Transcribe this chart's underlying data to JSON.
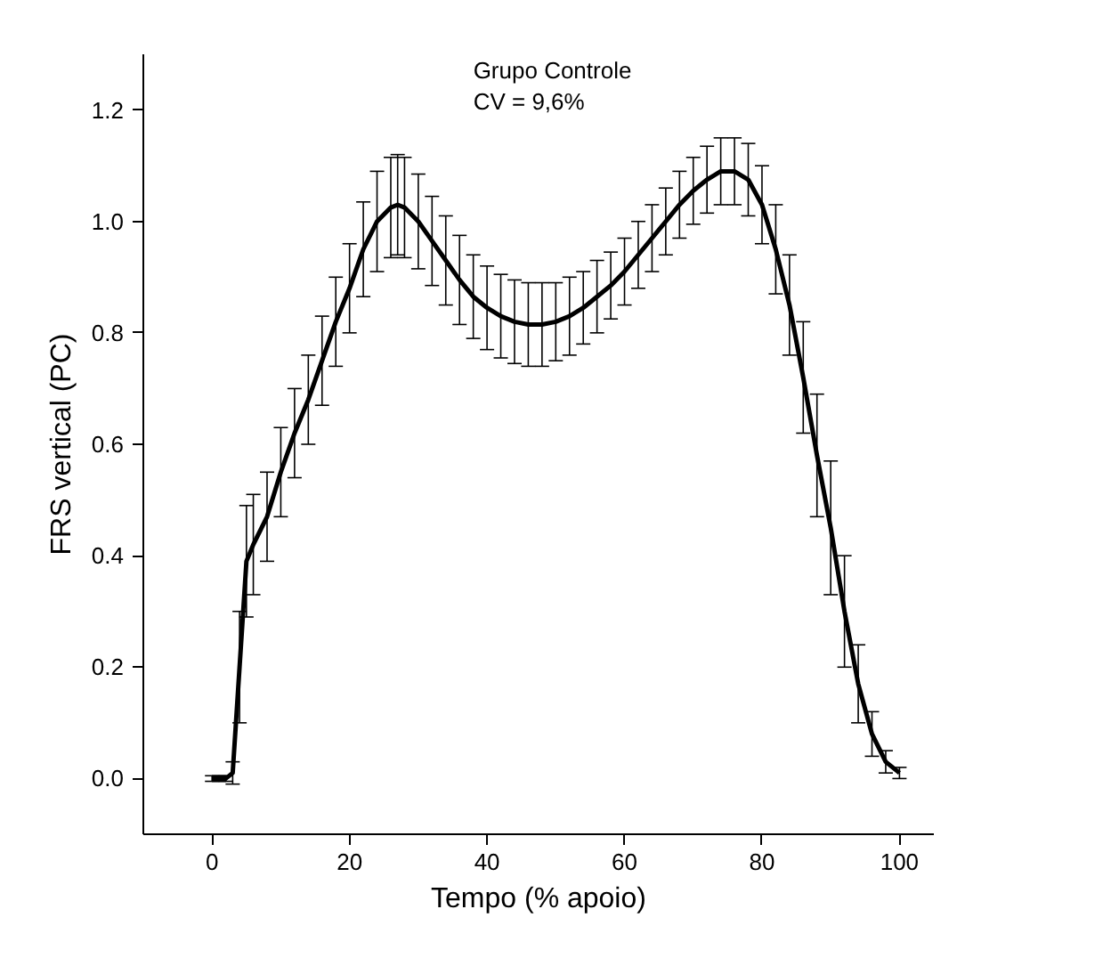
{
  "chart_data": {
    "type": "line",
    "xlabel": "Tempo (% apoio)",
    "ylabel": "FRS vertical (PC)",
    "annotations": [
      "Grupo Controle",
      "CV = 9,6%"
    ],
    "x": [
      0,
      1,
      2,
      3,
      4,
      5,
      6,
      8,
      10,
      12,
      14,
      16,
      18,
      20,
      22,
      24,
      26,
      27,
      28,
      30,
      32,
      34,
      36,
      38,
      40,
      42,
      44,
      46,
      48,
      50,
      52,
      54,
      56,
      58,
      60,
      62,
      64,
      66,
      68,
      70,
      72,
      74,
      76,
      78,
      80,
      82,
      84,
      86,
      88,
      90,
      92,
      94,
      96,
      98,
      100
    ],
    "series": [
      {
        "color": "#000000",
        "values": [
          0,
          0,
          0,
          0.01,
          0.2,
          0.39,
          0.42,
          0.47,
          0.55,
          0.62,
          0.68,
          0.75,
          0.82,
          0.88,
          0.95,
          1.0,
          1.025,
          1.03,
          1.025,
          1.0,
          0.965,
          0.93,
          0.895,
          0.865,
          0.845,
          0.83,
          0.82,
          0.815,
          0.815,
          0.82,
          0.83,
          0.845,
          0.865,
          0.885,
          0.91,
          0.94,
          0.97,
          1.0,
          1.03,
          1.055,
          1.075,
          1.09,
          1.09,
          1.075,
          1.03,
          0.95,
          0.85,
          0.72,
          0.58,
          0.45,
          0.3,
          0.17,
          0.08,
          0.03,
          0.01
        ],
        "errors": [
          0.005,
          0.005,
          0.005,
          0.02,
          0.1,
          0.1,
          0.09,
          0.08,
          0.08,
          0.08,
          0.08,
          0.08,
          0.08,
          0.08,
          0.085,
          0.09,
          0.09,
          0.09,
          0.09,
          0.085,
          0.08,
          0.08,
          0.08,
          0.075,
          0.075,
          0.075,
          0.075,
          0.075,
          0.075,
          0.07,
          0.07,
          0.065,
          0.065,
          0.06,
          0.06,
          0.06,
          0.06,
          0.06,
          0.06,
          0.06,
          0.06,
          0.06,
          0.06,
          0.065,
          0.07,
          0.08,
          0.09,
          0.1,
          0.11,
          0.12,
          0.1,
          0.07,
          0.04,
          0.02,
          0.01
        ]
      }
    ],
    "xlim": [
      -10,
      105
    ],
    "ylim": [
      -0.1,
      1.3
    ],
    "xticks": [
      0,
      20,
      40,
      60,
      80,
      100
    ],
    "yticks": [
      {
        "value": 0,
        "label": "0.0"
      },
      {
        "value": 0.2,
        "label": "0.2"
      },
      {
        "value": 0.4,
        "label": "0.4"
      },
      {
        "value": 0.6,
        "label": "0.6"
      },
      {
        "value": 0.8,
        "label": "0.8"
      },
      {
        "value": 1.0,
        "label": "1.0"
      },
      {
        "value": 1.2,
        "label": "1.2"
      }
    ],
    "grid": false,
    "marker": "none",
    "line_style": "solid"
  }
}
